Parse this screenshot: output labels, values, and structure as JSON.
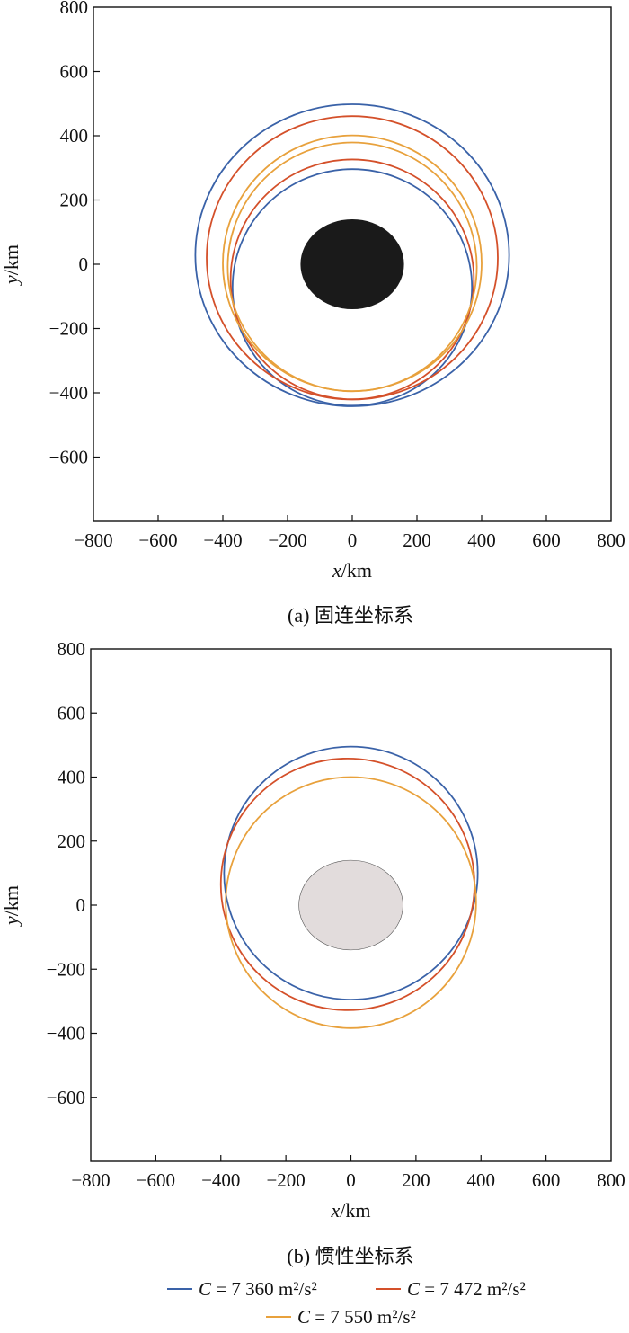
{
  "chart_data": [
    {
      "type": "line",
      "caption": "(a) 固连坐标系",
      "xlabel": "x/km",
      "ylabel": "y/km",
      "xlim": [
        -800,
        800
      ],
      "ylim": [
        -800,
        800
      ],
      "xticks": [
        -800,
        -600,
        -400,
        -200,
        0,
        200,
        400,
        600,
        800
      ],
      "yticks": [
        800,
        600,
        400,
        200,
        0,
        -200,
        -400,
        -600
      ],
      "grid": false,
      "body": {
        "shape": "ellipse",
        "center": [
          0,
          0
        ],
        "radius_x": 160,
        "radius_y": 140,
        "fill": "#1a1a1a"
      },
      "series": [
        {
          "name": "C = 7 360 m²/s²",
          "color": "#3a62a8",
          "curves": [
            {
              "center": [
                0,
                28
              ],
              "radius_x": 485,
              "radius_y": 470
            },
            {
              "center": [
                0,
                -72
              ],
              "radius_x": 370,
              "radius_y": 368
            }
          ]
        },
        {
          "name": "C = 7 472 m²/s²",
          "color": "#d4502a",
          "curves": [
            {
              "center": [
                0,
                20
              ],
              "radius_x": 450,
              "radius_y": 441
            },
            {
              "center": [
                0,
                -47
              ],
              "radius_x": 376,
              "radius_y": 373
            }
          ]
        },
        {
          "name": "C = 7 550 m²/s²",
          "color": "#e8a13c",
          "curves": [
            {
              "center": [
                0,
                3
              ],
              "radius_x": 400,
              "radius_y": 398
            },
            {
              "center": [
                0,
                -8
              ],
              "radius_x": 385,
              "radius_y": 387
            }
          ]
        }
      ]
    },
    {
      "type": "line",
      "caption": "(b) 惯性坐标系",
      "xlabel": "x/km",
      "ylabel": "y/km",
      "xlim": [
        -800,
        800
      ],
      "ylim": [
        -800,
        800
      ],
      "xticks": [
        -800,
        -600,
        -400,
        -200,
        0,
        200,
        400,
        600,
        800
      ],
      "yticks": [
        800,
        600,
        400,
        200,
        0,
        -200,
        -400,
        -600
      ],
      "grid": false,
      "body": {
        "shape": "ellipse",
        "center": [
          0,
          0
        ],
        "radius_x": 160,
        "radius_y": 140,
        "fill": "#e2dcdc"
      },
      "series": [
        {
          "name": "C = 7 360 m²/s²",
          "color": "#3a62a8",
          "curves": [
            {
              "center": [
                0,
                100
              ],
              "radius_x": 390,
              "radius_y": 395
            }
          ]
        },
        {
          "name": "C = 7 472 m²/s²",
          "color": "#d4502a",
          "curves": [
            {
              "center": [
                -10,
                65
              ],
              "radius_x": 390,
              "radius_y": 393
            }
          ]
        },
        {
          "name": "C = 7 550 m²/s²",
          "color": "#e8a13c",
          "curves": [
            {
              "center": [
                0,
                8
              ],
              "radius_x": 385,
              "radius_y": 392
            }
          ]
        }
      ]
    }
  ],
  "legend": {
    "placement": "bottom",
    "items": [
      {
        "italic": "C",
        "text": " = 7 360 m²/s²",
        "color": "#3a62a8"
      },
      {
        "italic": "C",
        "text": " = 7 472 m²/s²",
        "color": "#d4502a"
      },
      {
        "italic": "C",
        "text": " = 7 550 m²/s²",
        "color": "#e8a13c"
      }
    ]
  }
}
